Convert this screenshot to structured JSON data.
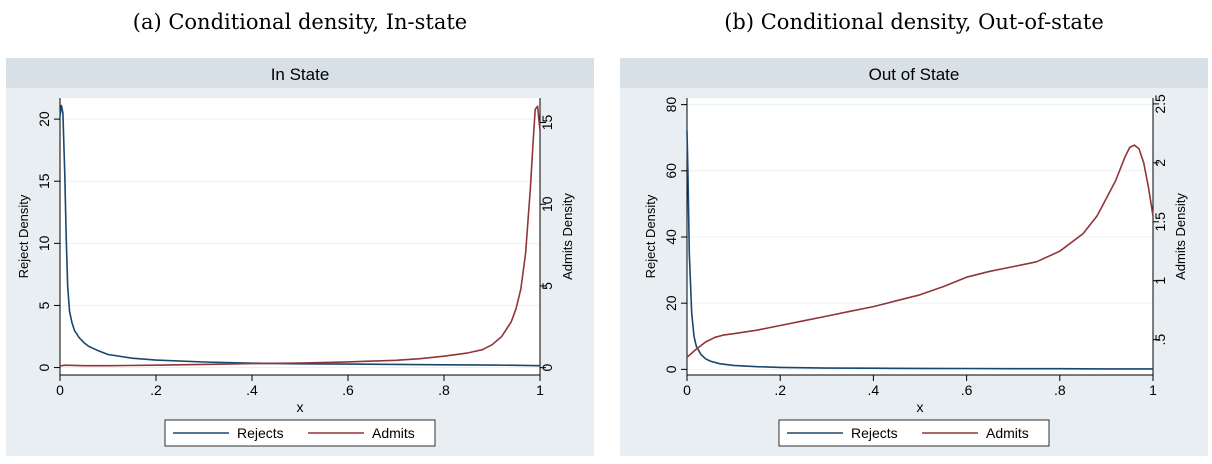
{
  "captions": {
    "a": "(a) Conditional density, In-state",
    "b": "(b) Conditional density, Out-of-state"
  },
  "colors": {
    "rejects": "#1a476f",
    "admits": "#90353b",
    "outer_bg": "#e8eef1",
    "plot_bg": "#ffffff",
    "title_bg": "#d6e0e6",
    "grid": "#eaf2f3"
  },
  "chart_data": [
    {
      "type": "line",
      "title": "In State",
      "xlabel": "x",
      "ylabel": "Reject Density",
      "y2label": "Admits Density",
      "xlim": [
        0,
        1
      ],
      "ylim": [
        -0.6,
        21.7
      ],
      "y2lim": [
        -0.45,
        16.5
      ],
      "xticks": [
        0,
        0.2,
        0.4,
        0.6,
        0.8,
        1
      ],
      "xtick_labels": [
        "0",
        ".2",
        ".4",
        ".6",
        ".8",
        "1"
      ],
      "yticks": [
        0,
        5,
        10,
        15,
        20
      ],
      "ytick_labels": [
        "0",
        "5",
        "10",
        "15",
        "20"
      ],
      "y2ticks": [
        0,
        5,
        10,
        15
      ],
      "y2tick_labels": [
        "0",
        "5",
        "10",
        "15"
      ],
      "grid": true,
      "legend_position": "bottom",
      "series": [
        {
          "name": "Rejects",
          "axis": "left",
          "x": [
            0,
            0.003,
            0.006,
            0.01,
            0.013,
            0.016,
            0.02,
            0.025,
            0.03,
            0.04,
            0.05,
            0.06,
            0.08,
            0.1,
            0.15,
            0.2,
            0.3,
            0.4,
            0.5,
            0.6,
            0.7,
            0.8,
            0.9,
            0.95,
            1.0
          ],
          "values": [
            20.2,
            21.1,
            20.5,
            15.5,
            10.5,
            6.5,
            4.5,
            3.6,
            3.0,
            2.4,
            2.0,
            1.7,
            1.35,
            1.05,
            0.75,
            0.6,
            0.45,
            0.35,
            0.3,
            0.28,
            0.25,
            0.22,
            0.2,
            0.18,
            0.15
          ]
        },
        {
          "name": "Admits",
          "axis": "right",
          "x": [
            0,
            0.01,
            0.05,
            0.1,
            0.2,
            0.3,
            0.4,
            0.5,
            0.6,
            0.65,
            0.7,
            0.75,
            0.8,
            0.85,
            0.88,
            0.9,
            0.92,
            0.94,
            0.95,
            0.96,
            0.97,
            0.98,
            0.985,
            0.99,
            0.995,
            1.0
          ],
          "values": [
            0.1,
            0.15,
            0.12,
            0.12,
            0.15,
            0.2,
            0.25,
            0.28,
            0.35,
            0.4,
            0.45,
            0.55,
            0.7,
            0.9,
            1.1,
            1.4,
            1.9,
            2.8,
            3.6,
            4.8,
            7.0,
            11.0,
            13.5,
            15.8,
            16.0,
            14.5
          ]
        }
      ]
    },
    {
      "type": "line",
      "title": "Out of State",
      "xlabel": "x",
      "ylabel": "Reject Density",
      "y2label": "Admits Density",
      "xlim": [
        0,
        1
      ],
      "ylim": [
        -1.7,
        82
      ],
      "y2lim": [
        0.2,
        2.55
      ],
      "xticks": [
        0,
        0.2,
        0.4,
        0.6,
        0.8,
        1
      ],
      "xtick_labels": [
        "0",
        ".2",
        ".4",
        ".6",
        ".8",
        "1"
      ],
      "yticks": [
        0,
        20,
        40,
        60,
        80
      ],
      "ytick_labels": [
        "0",
        "20",
        "40",
        "60",
        "80"
      ],
      "y2ticks": [
        0.5,
        1,
        1.5,
        2,
        2.5
      ],
      "y2tick_labels": [
        ".5",
        "1",
        "1.5",
        "2",
        "2.5"
      ],
      "grid": true,
      "legend_position": "bottom",
      "series": [
        {
          "name": "Rejects",
          "axis": "left",
          "x": [
            0,
            0.002,
            0.005,
            0.01,
            0.015,
            0.02,
            0.03,
            0.04,
            0.05,
            0.07,
            0.1,
            0.15,
            0.2,
            0.3,
            0.4,
            0.5,
            0.6,
            0.7,
            0.8,
            0.9,
            1.0
          ],
          "values": [
            72,
            60,
            35,
            17,
            10,
            7,
            4.5,
            3.2,
            2.5,
            1.7,
            1.2,
            0.8,
            0.6,
            0.4,
            0.35,
            0.3,
            0.25,
            0.2,
            0.2,
            0.15,
            0.15
          ]
        },
        {
          "name": "Admits",
          "axis": "right",
          "x": [
            0,
            0.02,
            0.04,
            0.06,
            0.08,
            0.1,
            0.15,
            0.2,
            0.25,
            0.3,
            0.35,
            0.4,
            0.45,
            0.5,
            0.55,
            0.6,
            0.65,
            0.7,
            0.75,
            0.8,
            0.85,
            0.88,
            0.9,
            0.92,
            0.94,
            0.95,
            0.96,
            0.97,
            0.98,
            0.99,
            1.0
          ],
          "values": [
            0.35,
            0.42,
            0.48,
            0.52,
            0.54,
            0.55,
            0.58,
            0.62,
            0.66,
            0.7,
            0.74,
            0.78,
            0.83,
            0.88,
            0.95,
            1.03,
            1.08,
            1.12,
            1.16,
            1.25,
            1.4,
            1.55,
            1.7,
            1.85,
            2.05,
            2.13,
            2.15,
            2.12,
            2.0,
            1.8,
            1.55
          ]
        }
      ]
    }
  ]
}
